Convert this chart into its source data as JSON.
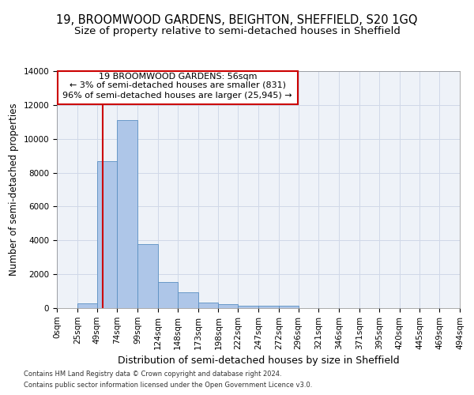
{
  "title1": "19, BROOMWOOD GARDENS, BEIGHTON, SHEFFIELD, S20 1GQ",
  "title2": "Size of property relative to semi-detached houses in Sheffield",
  "xlabel": "Distribution of semi-detached houses by size in Sheffield",
  "ylabel": "Number of semi-detached properties",
  "footnote1": "Contains HM Land Registry data © Crown copyright and database right 2024.",
  "footnote2": "Contains public sector information licensed under the Open Government Licence v3.0.",
  "annotation_line1": "19 BROOMWOOD GARDENS: 56sqm",
  "annotation_line2": "← 3% of semi-detached houses are smaller (831)",
  "annotation_line3": "96% of semi-detached houses are larger (25,945) →",
  "bar_edges": [
    0,
    25,
    49,
    74,
    99,
    124,
    148,
    173,
    198,
    222,
    247,
    272,
    296,
    321,
    346,
    371,
    395,
    420,
    445,
    469,
    494
  ],
  "bar_heights": [
    0,
    300,
    8700,
    11100,
    3800,
    1550,
    950,
    350,
    220,
    150,
    130,
    130,
    0,
    0,
    0,
    0,
    0,
    0,
    0,
    0
  ],
  "bar_color": "#aec6e8",
  "bar_edgecolor": "#5a8fc2",
  "vline_color": "#cc0000",
  "vline_x": 56,
  "ylim": [
    0,
    14000
  ],
  "yticks": [
    0,
    2000,
    4000,
    6000,
    8000,
    10000,
    12000,
    14000
  ],
  "xtick_labels": [
    "0sqm",
    "25sqm",
    "49sqm",
    "74sqm",
    "99sqm",
    "124sqm",
    "148sqm",
    "173sqm",
    "198sqm",
    "222sqm",
    "247sqm",
    "272sqm",
    "296sqm",
    "321sqm",
    "346sqm",
    "371sqm",
    "395sqm",
    "420sqm",
    "445sqm",
    "469sqm",
    "494sqm"
  ],
  "grid_color": "#d0d8e8",
  "background_color": "#eef2f8",
  "annotation_box_color": "#ffffff",
  "annotation_box_edge": "#cc0000",
  "title1_fontsize": 10.5,
  "title2_fontsize": 9.5,
  "xlabel_fontsize": 9,
  "ylabel_fontsize": 8.5,
  "annotation_fontsize": 8,
  "tick_fontsize": 7.5,
  "footnote_fontsize": 6
}
